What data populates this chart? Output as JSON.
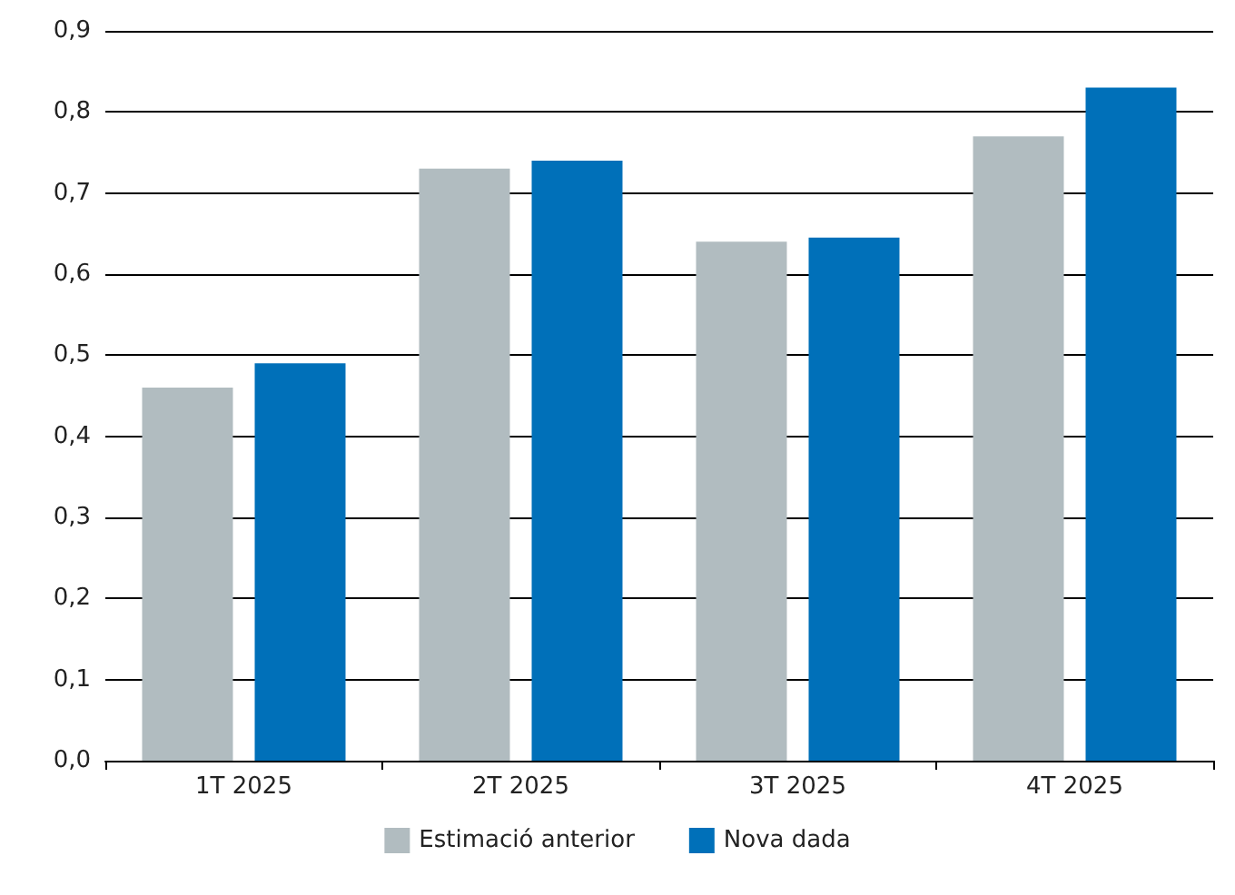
{
  "chart_data": {
    "type": "bar",
    "categories": [
      "1T 2025",
      "2T 2025",
      "3T 2025",
      "4T 2025"
    ],
    "series": [
      {
        "name": "Estimació anterior",
        "color": "#b1bcc0",
        "values": [
          0.46,
          0.73,
          0.64,
          0.77
        ]
      },
      {
        "name": "Nova dada",
        "color": "#0070b9",
        "values": [
          0.49,
          0.74,
          0.645,
          0.83
        ]
      }
    ],
    "ylim": [
      0,
      0.9
    ],
    "yticks": [
      {
        "value": 0,
        "label": "0,0"
      },
      {
        "value": 0.1,
        "label": "0,1"
      },
      {
        "value": 0.2,
        "label": "0,2"
      },
      {
        "value": 0.3,
        "label": "0,3"
      },
      {
        "value": 0.4,
        "label": "0,4"
      },
      {
        "value": 0.5,
        "label": "0,5"
      },
      {
        "value": 0.6,
        "label": "0,6"
      },
      {
        "value": 0.7,
        "label": "0,7"
      },
      {
        "value": 0.8,
        "label": "0,8"
      },
      {
        "value": 0.9,
        "label": "0,9"
      }
    ],
    "grid": "y",
    "legend": "bottom"
  }
}
